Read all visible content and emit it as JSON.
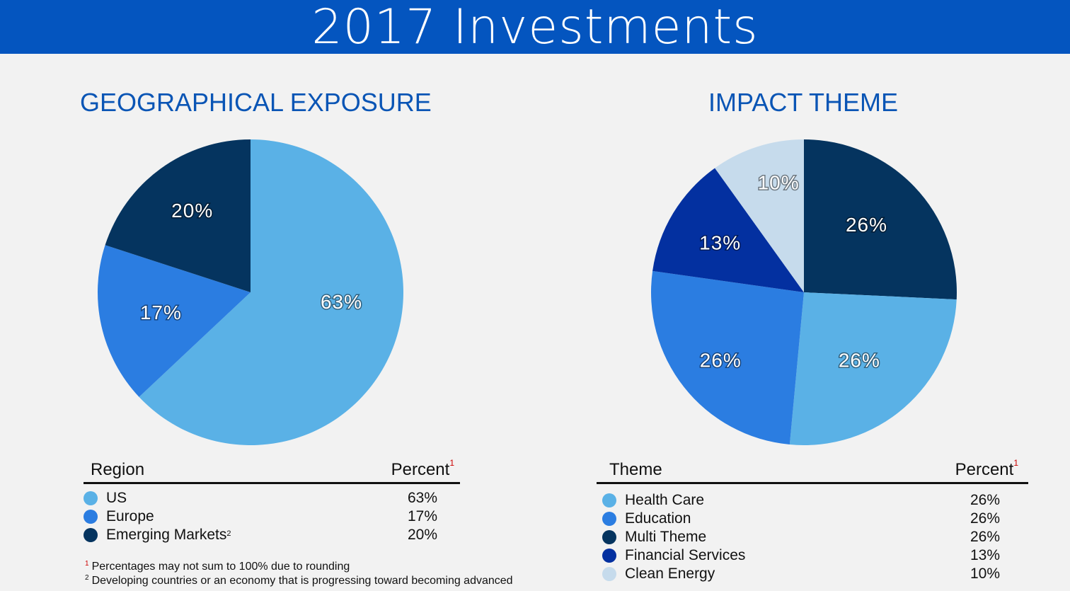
{
  "header": {
    "title": "2017 Investments"
  },
  "geo": {
    "title": "GEOGRAPHICAL EXPOSURE",
    "table_header": {
      "label": "Region",
      "value": "Percent",
      "value_sup": "1"
    },
    "rows": [
      {
        "label": "US",
        "sup": "",
        "value": "63%",
        "color": "#5ab1e6"
      },
      {
        "label": "Europe",
        "sup": "",
        "value": "17%",
        "color": "#2b7de1"
      },
      {
        "label": "Emerging Markets",
        "sup": "2",
        "value": "20%",
        "color": "#05345f"
      }
    ]
  },
  "impact": {
    "title": "IMPACT THEME",
    "table_header": {
      "label": "Theme",
      "value": "Percent",
      "value_sup": "1"
    },
    "rows": [
      {
        "label": "Health Care",
        "sup": "",
        "value": "26%",
        "color": "#5ab1e6"
      },
      {
        "label": "Education",
        "sup": "",
        "value": "26%",
        "color": "#2b7de1"
      },
      {
        "label": "Multi Theme",
        "sup": "",
        "value": "26%",
        "color": "#05345f"
      },
      {
        "label": "Financial Services",
        "sup": "",
        "value": "13%",
        "color": "#0330a0"
      },
      {
        "label": "Clean Energy",
        "sup": "",
        "value": "10%",
        "color": "#c6dbec"
      }
    ]
  },
  "footnotes": [
    {
      "mark": "1",
      "text": "Percentages may not sum to 100% due to rounding"
    },
    {
      "mark": "2",
      "text": "Developing countries or an economy that is progressing toward becoming advanced"
    }
  ],
  "chart_data": [
    {
      "type": "pie",
      "title": "GEOGRAPHICAL EXPOSURE",
      "slices": [
        {
          "label": "US",
          "value": 63,
          "display": "63%",
          "color": "#5ab1e6"
        },
        {
          "label": "Europe",
          "value": 17,
          "display": "17%",
          "color": "#2b7de1"
        },
        {
          "label": "Emerging Markets",
          "value": 20,
          "display": "20%",
          "color": "#05345f"
        }
      ]
    },
    {
      "type": "pie",
      "title": "IMPACT THEME",
      "slices": [
        {
          "label": "Multi Theme",
          "value": 26,
          "display": "26%",
          "color": "#05345f"
        },
        {
          "label": "Health Care",
          "value": 26,
          "display": "26%",
          "color": "#5ab1e6"
        },
        {
          "label": "Education",
          "value": 26,
          "display": "26%",
          "color": "#2b7de1"
        },
        {
          "label": "Financial Services",
          "value": 13,
          "display": "13%",
          "color": "#0330a0"
        },
        {
          "label": "Clean Energy",
          "value": 10,
          "display": "10%",
          "color": "#c6dbec"
        }
      ]
    }
  ]
}
